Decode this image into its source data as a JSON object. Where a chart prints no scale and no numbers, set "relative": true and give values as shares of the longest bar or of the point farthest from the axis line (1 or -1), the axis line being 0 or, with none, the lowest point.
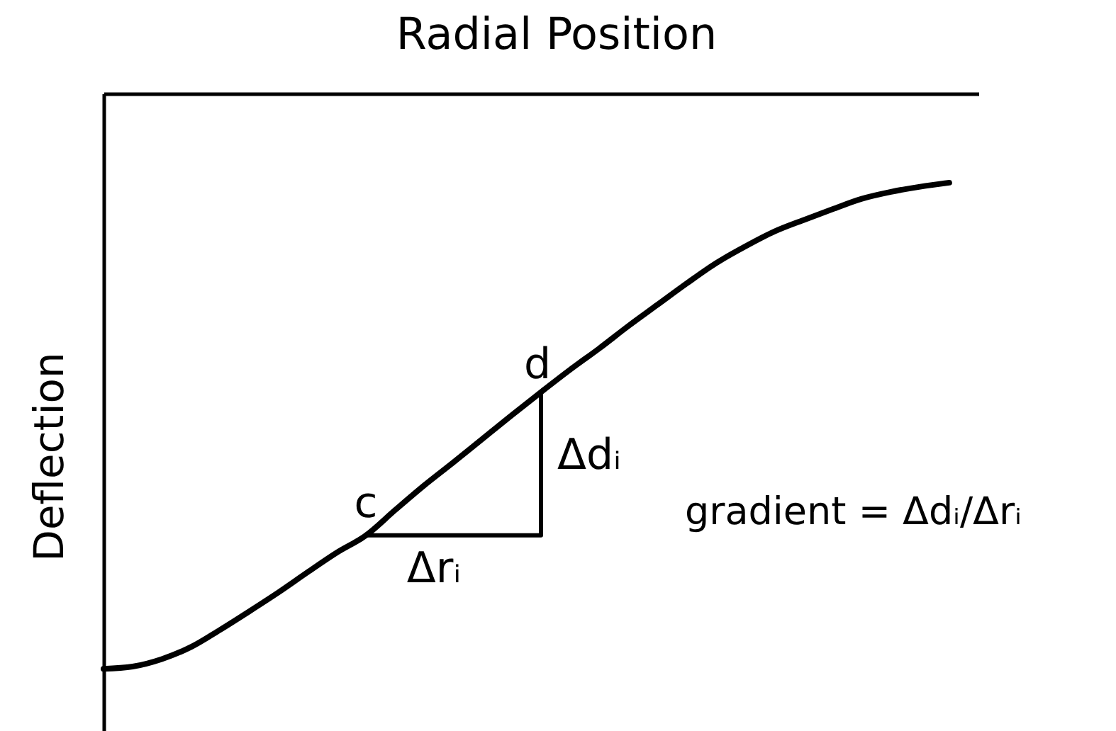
{
  "chart_data": {
    "type": "line",
    "relative": true,
    "xlabel": "Radial Position",
    "ylabel": "Deflection",
    "categories": [
      null,
      null,
      null,
      null,
      null,
      null,
      null,
      null,
      null,
      null,
      null,
      null,
      null,
      null,
      null,
      null,
      null,
      null,
      null,
      null,
      null,
      null,
      null,
      null,
      null,
      null,
      null,
      null,
      null,
      null,
      null
    ],
    "series": [
      {
        "color": "#000000",
        "values": [
          -1.0,
          -0.996,
          -0.983,
          -0.962,
          -0.932,
          -0.9,
          -0.867,
          -0.832,
          -0.798,
          -0.768,
          -0.724,
          -0.681,
          -0.641,
          -0.6,
          -0.559,
          -0.519,
          -0.48,
          -0.443,
          -0.404,
          -0.367,
          -0.33,
          -0.295,
          -0.266,
          -0.24,
          -0.22,
          -0.201,
          -0.183,
          -0.171,
          -0.162,
          -0.155,
          null
        ]
      },
      {
        "type": "step",
        "color": "#000000",
        "values": [
          null,
          null,
          null,
          null,
          null,
          null,
          null,
          null,
          null,
          -0.768,
          null,
          null,
          null,
          null,
          null,
          -0.519,
          null,
          null,
          null,
          null,
          null,
          null,
          null,
          null,
          null,
          null,
          null,
          null,
          null,
          null,
          null
        ]
      }
    ],
    "annotations": [
      "c",
      "d",
      "Δdᵢ",
      "Δrᵢ",
      "gradient = Δdᵢ/Δrᵢ"
    ]
  }
}
